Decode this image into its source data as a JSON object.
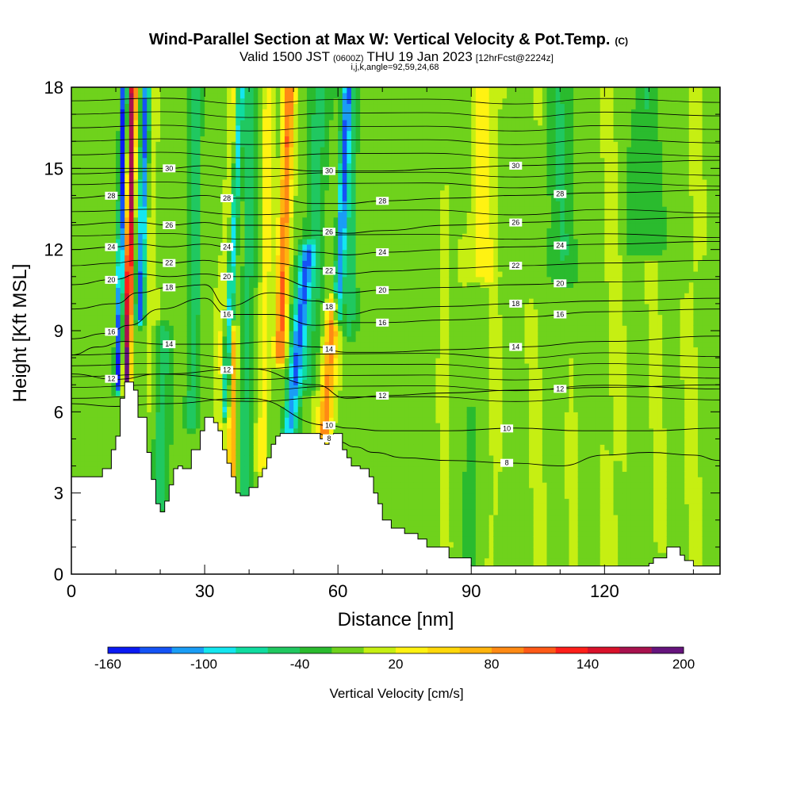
{
  "chart_data": {
    "type": "heatmap",
    "title": "Wind-Parallel Section at Max W: Vertical Velocity & Pot.Temp.",
    "title_mark": "(C)",
    "subtitle_main": "Valid 1500 JST",
    "subtitle_utc": "(0600Z)",
    "subtitle_date": "THU 19 Jan 2023",
    "subtitle_fcst": "[12hrFcst@2224z]",
    "subtitle_params": "i,j,k,angle=92,59,24,68",
    "xlabel": "Distance [nm]",
    "ylabel": "Height [Kft MSL]",
    "xlim": [
      0,
      146
    ],
    "ylim": [
      0,
      18
    ],
    "x_ticks": [
      "0",
      "30",
      "60",
      "90",
      "120"
    ],
    "y_ticks": [
      "0",
      "3",
      "6",
      "9",
      "12",
      "15",
      "18"
    ],
    "colorbar": {
      "label": "Vertical Velocity [cm/s]",
      "tick_labels": [
        "-160",
        "-100",
        "-40",
        "20",
        "80",
        "140",
        "200"
      ],
      "tick_values": [
        -160,
        -100,
        -40,
        20,
        80,
        140,
        200
      ],
      "min": -160,
      "max": 200,
      "colors": [
        "#0b1af3",
        "#1553f5",
        "#1a9df5",
        "#14e6ef",
        "#10dca0",
        "#20c860",
        "#2abb2e",
        "#6fd21c",
        "#c6ef12",
        "#fff212",
        "#ffd80a",
        "#ffb40e",
        "#ff8a14",
        "#ff5a17",
        "#ff1f1a",
        "#d9122a",
        "#a8124e",
        "#66147d"
      ]
    },
    "terrain": {
      "x": [
        0,
        4,
        7,
        9,
        10,
        11,
        12,
        13,
        14,
        15,
        16,
        17,
        18,
        19,
        20,
        21,
        22,
        23,
        24,
        25,
        27,
        29,
        30,
        31,
        32,
        33,
        34,
        35,
        36,
        37,
        38,
        40,
        42,
        43,
        44,
        45,
        46,
        47,
        48,
        49,
        50,
        52,
        55,
        56,
        57,
        58,
        59,
        60,
        61,
        62,
        63,
        65,
        67,
        68,
        69,
        70,
        72,
        75,
        78,
        80,
        85,
        90,
        100,
        110,
        120,
        128,
        130,
        131,
        134,
        136,
        137,
        138,
        140,
        146
      ],
      "y": [
        3.6,
        3.6,
        3.9,
        4.6,
        5.1,
        6.5,
        7.1,
        7.1,
        6.8,
        5.8,
        5.8,
        4.5,
        3.5,
        2.6,
        2.3,
        2.7,
        3.3,
        3.9,
        4.0,
        3.9,
        4.6,
        5.3,
        5.8,
        5.8,
        5.6,
        5.3,
        4.6,
        4.1,
        3.6,
        3.0,
        2.9,
        3.2,
        3.6,
        3.9,
        4.3,
        4.8,
        5.1,
        5.2,
        5.2,
        5.2,
        5.2,
        5.2,
        5.2,
        5.0,
        4.8,
        5.1,
        5.2,
        5.2,
        4.6,
        4.3,
        4.0,
        3.9,
        3.6,
        3.0,
        2.6,
        2.0,
        1.7,
        1.5,
        1.3,
        1.0,
        0.6,
        0.3,
        0.3,
        0.3,
        0.3,
        0.3,
        0.4,
        0.6,
        1.0,
        1.0,
        0.7,
        0.5,
        0.3,
        0.3
      ]
    },
    "w_background": -8,
    "w_features": [
      {
        "x": 12.5,
        "y0": 7.0,
        "y1": 18.0,
        "w": 190,
        "half_width": 0.8,
        "tilt": 0.12
      },
      {
        "x": 10.5,
        "y0": 7.0,
        "y1": 18.0,
        "w": -140,
        "half_width": 0.7,
        "tilt": 0.12
      },
      {
        "x": 15.5,
        "y0": 9.5,
        "y1": 18.0,
        "w": -120,
        "half_width": 0.9,
        "tilt": 0.15
      },
      {
        "x": 17.5,
        "y0": 4.0,
        "y1": 18.0,
        "w": 20,
        "half_width": 1.3,
        "tilt": 0.1
      },
      {
        "x": 20.0,
        "y0": 2.5,
        "y1": 9.0,
        "w": -45,
        "half_width": 2.0,
        "tilt": 0.05
      },
      {
        "x": 27.0,
        "y0": 5.5,
        "y1": 18.0,
        "w": -45,
        "half_width": 1.5,
        "tilt": 0.1
      },
      {
        "x": 33.0,
        "y0": 5.5,
        "y1": 18.0,
        "w": 30,
        "half_width": 1.3,
        "tilt": 0.3
      },
      {
        "x": 34.5,
        "y0": 6.0,
        "y1": 18.0,
        "w": -90,
        "half_width": 0.9,
        "tilt": 0.3
      },
      {
        "x": 36.0,
        "y0": 3.0,
        "y1": 9.0,
        "w": 90,
        "half_width": 0.9,
        "tilt": 0.1
      },
      {
        "x": 39.0,
        "y0": 3.0,
        "y1": 18.0,
        "w": -40,
        "half_width": 1.5,
        "tilt": 0.1
      },
      {
        "x": 43.0,
        "y0": 4.0,
        "y1": 18.0,
        "w": 35,
        "half_width": 1.3,
        "tilt": 0.1
      },
      {
        "x": 47.0,
        "y0": 8.0,
        "y1": 18.0,
        "w": 110,
        "half_width": 1.3,
        "tilt": 0.2
      },
      {
        "x": 49.0,
        "y0": 5.2,
        "y1": 12.0,
        "w": -100,
        "half_width": 1.6,
        "tilt": 0.6
      },
      {
        "x": 53.0,
        "y0": 7.0,
        "y1": 18.0,
        "w": -40,
        "half_width": 2.5,
        "tilt": 0.3
      },
      {
        "x": 57.0,
        "y0": 5.2,
        "y1": 10.0,
        "w": 100,
        "half_width": 1.6,
        "tilt": 0.4
      },
      {
        "x": 60.0,
        "y0": 9.5,
        "y1": 18.0,
        "w": -110,
        "half_width": 1.0,
        "tilt": 0.25
      },
      {
        "x": 62.5,
        "y0": 9.0,
        "y1": 18.0,
        "w": -40,
        "half_width": 1.5,
        "tilt": 0.1
      },
      {
        "x": 84.0,
        "y0": 1.0,
        "y1": 14.0,
        "w": 25,
        "half_width": 1.0,
        "tilt": 0.0
      },
      {
        "x": 92.0,
        "y0": 11.0,
        "y1": 18.0,
        "w": 35,
        "half_width": 3.0,
        "tilt": 0.2
      },
      {
        "x": 95.0,
        "y0": 0.3,
        "y1": 12.0,
        "w": 15,
        "half_width": 1.5,
        "tilt": 0.0
      },
      {
        "x": 105.0,
        "y0": 0.3,
        "y1": 18.0,
        "w": 12,
        "half_width": 2.0,
        "tilt": 0.0
      },
      {
        "x": 113.0,
        "y0": 0.3,
        "y1": 8.0,
        "w": 15,
        "half_width": 1.2,
        "tilt": 0.0
      },
      {
        "x": 122.0,
        "y0": 0.3,
        "y1": 18.0,
        "w": 14,
        "half_width": 2.5,
        "tilt": 0.0
      },
      {
        "x": 132.0,
        "y0": 1.0,
        "y1": 18.0,
        "w": 12,
        "half_width": 2.0,
        "tilt": 0.0
      },
      {
        "x": 140.0,
        "y0": 0.3,
        "y1": 18.0,
        "w": 14,
        "half_width": 2.0,
        "tilt": 0.0
      },
      {
        "x": 110.0,
        "y0": 11.0,
        "y1": 18.0,
        "w": -30,
        "half_width": 4.0,
        "tilt": 0.0
      },
      {
        "x": 130.0,
        "y0": 12.0,
        "y1": 18.0,
        "w": -30,
        "half_width": 5.0,
        "tilt": 0.0
      },
      {
        "x": 90.0,
        "y0": 0.3,
        "y1": 6.0,
        "w": -25,
        "half_width": 1.5,
        "tilt": 0.0
      }
    ],
    "theta_contours": [
      {
        "level": 8,
        "x": [
          55,
          60,
          64,
          68,
          75,
          85,
          100,
          110,
          120,
          130,
          140,
          146
        ],
        "y": [
          5.2,
          4.9,
          4.7,
          4.5,
          4.3,
          4.2,
          4.1,
          4.0,
          4.4,
          4.5,
          4.4,
          4.2
        ]
      },
      {
        "level": 10,
        "x": [
          0,
          10,
          20,
          40,
          58,
          62,
          70,
          85,
          100,
          115,
          130,
          146
        ],
        "y": [
          6.3,
          6.2,
          6.3,
          6.5,
          5.5,
          5.4,
          5.3,
          5.3,
          5.4,
          5.3,
          5.3,
          5.4
        ]
      },
      {
        "level": 12,
        "x": [
          0,
          10,
          20,
          40,
          55,
          62,
          70,
          85,
          100,
          120,
          146
        ],
        "y": [
          7.4,
          7.2,
          7.4,
          7.6,
          7.0,
          6.5,
          6.6,
          6.7,
          6.8,
          6.9,
          7.0
        ]
      },
      {
        "level": 14,
        "x": [
          0,
          6,
          12,
          20,
          35,
          45,
          55,
          62,
          70,
          85,
          100,
          120,
          146
        ],
        "y": [
          8.1,
          8.4,
          8.6,
          8.5,
          8.5,
          8.6,
          8.4,
          8.2,
          8.2,
          8.3,
          8.4,
          8.6,
          8.8
        ]
      },
      {
        "level": 16,
        "x": [
          0,
          8,
          13,
          20,
          30,
          35,
          45,
          55,
          62,
          70,
          85,
          100,
          120,
          146
        ],
        "y": [
          8.7,
          8.9,
          9.2,
          9.8,
          10.2,
          9.6,
          9.6,
          9.2,
          9.3,
          9.3,
          9.4,
          9.5,
          9.7,
          9.8
        ]
      },
      {
        "level": 18,
        "x": [
          0,
          10,
          15,
          22,
          30,
          35,
          45,
          55,
          62,
          70,
          85,
          100,
          120,
          146
        ],
        "y": [
          9.8,
          10.0,
          10.4,
          10.6,
          10.7,
          9.9,
          10.4,
          10.1,
          9.6,
          9.8,
          9.9,
          10.0,
          10.1,
          10.2
        ]
      },
      {
        "level": 20,
        "x": [
          0,
          10,
          15,
          22,
          30,
          35,
          45,
          55,
          62,
          70,
          85,
          100,
          120,
          146
        ],
        "y": [
          10.7,
          10.9,
          11.1,
          11.0,
          11.1,
          11.0,
          11.0,
          10.6,
          10.4,
          10.5,
          10.6,
          10.7,
          10.8,
          10.9
        ]
      },
      {
        "level": 22,
        "x": [
          0,
          10,
          15,
          22,
          30,
          35,
          45,
          55,
          62,
          70,
          85,
          100,
          120,
          146
        ],
        "y": [
          11.4,
          11.5,
          11.6,
          11.5,
          11.6,
          11.5,
          11.5,
          11.3,
          11.1,
          11.2,
          11.3,
          11.4,
          11.5,
          11.6
        ]
      },
      {
        "level": 24,
        "x": [
          0,
          10,
          15,
          22,
          30,
          35,
          45,
          55,
          62,
          70,
          85,
          100,
          120,
          146
        ],
        "y": [
          12.0,
          12.1,
          12.2,
          12.1,
          12.2,
          12.1,
          12.1,
          11.9,
          11.8,
          11.9,
          12.0,
          12.1,
          12.2,
          12.3
        ]
      },
      {
        "level": 26,
        "x": [
          0,
          10,
          15,
          22,
          30,
          35,
          45,
          55,
          62,
          70,
          85,
          100,
          120,
          146
        ],
        "y": [
          12.9,
          13.0,
          13.0,
          12.9,
          13.0,
          12.9,
          12.9,
          12.7,
          12.6,
          12.7,
          12.9,
          13.0,
          13.1,
          13.2
        ]
      },
      {
        "level": 28,
        "x": [
          0,
          10,
          15,
          22,
          30,
          35,
          45,
          55,
          62,
          70,
          85,
          100,
          120,
          146
        ],
        "y": [
          13.9,
          14.0,
          14.0,
          13.9,
          14.0,
          13.9,
          13.9,
          13.7,
          13.7,
          13.8,
          13.9,
          14.0,
          14.1,
          14.2
        ]
      },
      {
        "level": 30,
        "x": [
          0,
          10,
          15,
          22,
          30,
          35,
          45,
          55,
          62,
          70,
          85,
          100,
          120,
          146
        ],
        "y": [
          15.0,
          15.0,
          15.0,
          15.0,
          15.1,
          15.0,
          15.0,
          14.9,
          14.9,
          14.9,
          15.0,
          15.1,
          15.2,
          15.3
        ]
      }
    ],
    "theta_fill_levels": [
      6.5,
      6.9,
      7.3,
      7.7,
      8.1,
      12.5,
      13.4,
      14.4,
      14.8,
      15.5,
      16.0,
      16.5,
      17.0,
      17.5
    ]
  }
}
